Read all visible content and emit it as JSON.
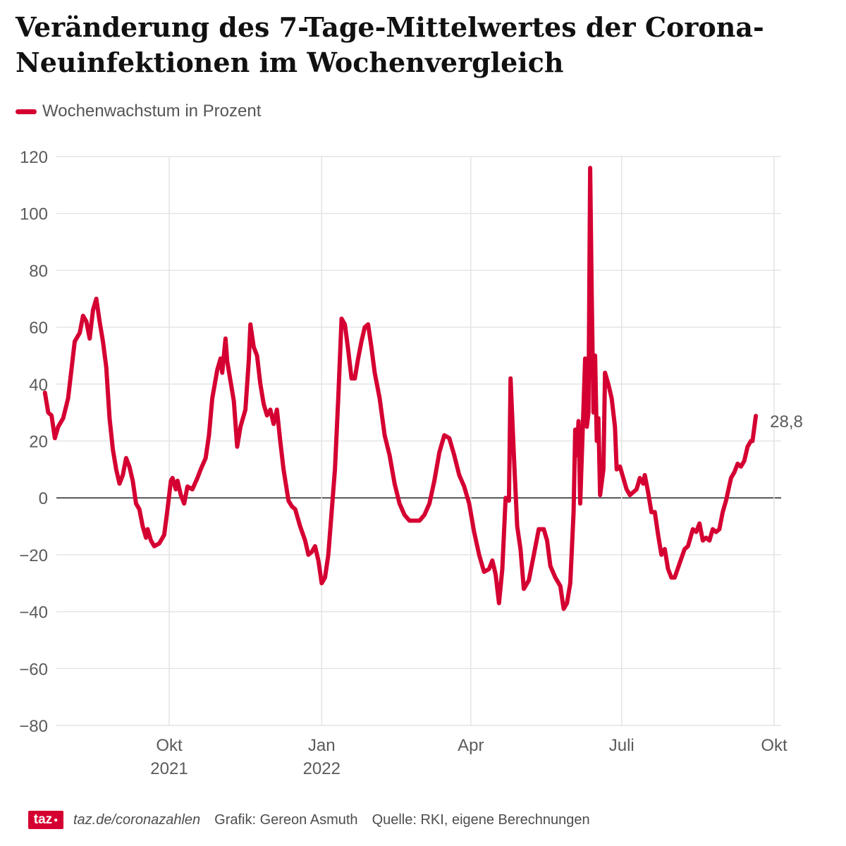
{
  "header": {
    "title": "Veränderung des 7-Tage-Mittelwertes der Corona-Neuinfektionen im Wochenvergleich"
  },
  "legend": {
    "label": "Wochenwachstum in Prozent",
    "color": "#d50032"
  },
  "footer": {
    "logo_text": "taz",
    "link": "taz.de/coronazahlen",
    "credit": "Grafik: Gereon Asmuth",
    "source": "Quelle: RKI, eigene Berechnungen"
  },
  "chart_data": {
    "type": "line",
    "title": "Veränderung des 7-Tage-Mittelwertes der Corona-Neuinfektionen im Wochenvergleich",
    "xlabel": "",
    "ylabel": "",
    "ylim": [
      -80,
      120
    ],
    "yticks": [
      120,
      100,
      80,
      60,
      40,
      20,
      0,
      -20,
      -40,
      -60,
      -80
    ],
    "ytick_labels": [
      "120",
      "100",
      "80",
      "60",
      "40",
      "20",
      "0",
      "−20",
      "−40",
      "−60",
      "−80"
    ],
    "xlim": [
      "2021-07-15",
      "2022-10-01"
    ],
    "xticks": [
      {
        "date": "2021-10-01",
        "label": "Okt",
        "sublabel": "2021"
      },
      {
        "date": "2022-01-01",
        "label": "Jan",
        "sublabel": "2022"
      },
      {
        "date": "2022-04-01",
        "label": "Apr",
        "sublabel": ""
      },
      {
        "date": "2022-07-01",
        "label": "Juli",
        "sublabel": ""
      },
      {
        "date": "2022-10-01",
        "label": "Okt",
        "sublabel": ""
      }
    ],
    "grid": true,
    "legend_position": "top-left",
    "end_label": "28,8",
    "series": [
      {
        "name": "Wochenwachstum in Prozent",
        "color": "#d50032",
        "points": [
          [
            "2021-07-18",
            37
          ],
          [
            "2021-07-20",
            30
          ],
          [
            "2021-07-22",
            29
          ],
          [
            "2021-07-24",
            21
          ],
          [
            "2021-07-26",
            25
          ],
          [
            "2021-07-29",
            28
          ],
          [
            "2021-08-01",
            35
          ],
          [
            "2021-08-03",
            45
          ],
          [
            "2021-08-05",
            55
          ],
          [
            "2021-08-08",
            58
          ],
          [
            "2021-08-10",
            64
          ],
          [
            "2021-08-12",
            62
          ],
          [
            "2021-08-14",
            56
          ],
          [
            "2021-08-16",
            66
          ],
          [
            "2021-08-18",
            70
          ],
          [
            "2021-08-20",
            62
          ],
          [
            "2021-08-22",
            55
          ],
          [
            "2021-08-24",
            46
          ],
          [
            "2021-08-26",
            28
          ],
          [
            "2021-08-28",
            17
          ],
          [
            "2021-08-30",
            10
          ],
          [
            "2021-09-01",
            5
          ],
          [
            "2021-09-03",
            8
          ],
          [
            "2021-09-05",
            14
          ],
          [
            "2021-09-07",
            11
          ],
          [
            "2021-09-09",
            6
          ],
          [
            "2021-09-11",
            -2
          ],
          [
            "2021-09-13",
            -4
          ],
          [
            "2021-09-15",
            -10
          ],
          [
            "2021-09-17",
            -14
          ],
          [
            "2021-09-18",
            -11
          ],
          [
            "2021-09-20",
            -15
          ],
          [
            "2021-09-22",
            -17
          ],
          [
            "2021-09-25",
            -16
          ],
          [
            "2021-09-28",
            -13
          ],
          [
            "2021-09-30",
            -4
          ],
          [
            "2021-10-02",
            6
          ],
          [
            "2021-10-03",
            7
          ],
          [
            "2021-10-05",
            3
          ],
          [
            "2021-10-06",
            6
          ],
          [
            "2021-10-08",
            1
          ],
          [
            "2021-10-10",
            -2
          ],
          [
            "2021-10-12",
            4
          ],
          [
            "2021-10-15",
            3
          ],
          [
            "2021-10-18",
            7
          ],
          [
            "2021-10-20",
            10
          ],
          [
            "2021-10-23",
            14
          ],
          [
            "2021-10-25",
            22
          ],
          [
            "2021-10-27",
            35
          ],
          [
            "2021-10-30",
            45
          ],
          [
            "2021-11-01",
            49
          ],
          [
            "2021-11-02",
            44
          ],
          [
            "2021-11-04",
            56
          ],
          [
            "2021-11-05",
            48
          ],
          [
            "2021-11-07",
            41
          ],
          [
            "2021-11-09",
            34
          ],
          [
            "2021-11-11",
            18
          ],
          [
            "2021-11-13",
            25
          ],
          [
            "2021-11-16",
            31
          ],
          [
            "2021-11-18",
            48
          ],
          [
            "2021-11-19",
            61
          ],
          [
            "2021-11-21",
            53
          ],
          [
            "2021-11-23",
            50
          ],
          [
            "2021-11-25",
            40
          ],
          [
            "2021-11-27",
            33
          ],
          [
            "2021-11-29",
            29
          ],
          [
            "2021-12-01",
            31
          ],
          [
            "2021-12-03",
            26
          ],
          [
            "2021-12-05",
            31
          ],
          [
            "2021-12-07",
            20
          ],
          [
            "2021-12-09",
            10
          ],
          [
            "2021-12-12",
            -1
          ],
          [
            "2021-12-14",
            -3
          ],
          [
            "2021-12-16",
            -4
          ],
          [
            "2021-12-19",
            -10
          ],
          [
            "2021-12-22",
            -15
          ],
          [
            "2021-12-24",
            -20
          ],
          [
            "2021-12-26",
            -19
          ],
          [
            "2021-12-28",
            -17
          ],
          [
            "2021-12-30",
            -22
          ],
          [
            "2022-01-01",
            -30
          ],
          [
            "2022-01-03",
            -28
          ],
          [
            "2022-01-05",
            -20
          ],
          [
            "2022-01-07",
            -5
          ],
          [
            "2022-01-09",
            10
          ],
          [
            "2022-01-11",
            35
          ],
          [
            "2022-01-13",
            63
          ],
          [
            "2022-01-15",
            61
          ],
          [
            "2022-01-17",
            52
          ],
          [
            "2022-01-19",
            42
          ],
          [
            "2022-01-21",
            42
          ],
          [
            "2022-01-23",
            49
          ],
          [
            "2022-01-25",
            55
          ],
          [
            "2022-01-27",
            60
          ],
          [
            "2022-01-29",
            61
          ],
          [
            "2022-01-31",
            53
          ],
          [
            "2022-02-02",
            44
          ],
          [
            "2022-02-05",
            35
          ],
          [
            "2022-02-08",
            22
          ],
          [
            "2022-02-11",
            15
          ],
          [
            "2022-02-14",
            5
          ],
          [
            "2022-02-17",
            -2
          ],
          [
            "2022-02-20",
            -6
          ],
          [
            "2022-02-23",
            -8
          ],
          [
            "2022-02-26",
            -8
          ],
          [
            "2022-03-01",
            -8
          ],
          [
            "2022-03-04",
            -6
          ],
          [
            "2022-03-07",
            -2
          ],
          [
            "2022-03-10",
            6
          ],
          [
            "2022-03-13",
            16
          ],
          [
            "2022-03-16",
            22
          ],
          [
            "2022-03-19",
            21
          ],
          [
            "2022-03-22",
            15
          ],
          [
            "2022-03-25",
            8
          ],
          [
            "2022-03-28",
            4
          ],
          [
            "2022-03-31",
            -2
          ],
          [
            "2022-04-03",
            -12
          ],
          [
            "2022-04-06",
            -20
          ],
          [
            "2022-04-09",
            -26
          ],
          [
            "2022-04-12",
            -25
          ],
          [
            "2022-04-14",
            -22
          ],
          [
            "2022-04-16",
            -27
          ],
          [
            "2022-04-18",
            -37
          ],
          [
            "2022-04-20",
            -25
          ],
          [
            "2022-04-22",
            0
          ],
          [
            "2022-04-24",
            -1
          ],
          [
            "2022-04-25",
            42
          ],
          [
            "2022-04-27",
            15
          ],
          [
            "2022-04-29",
            -10
          ],
          [
            "2022-05-01",
            -18
          ],
          [
            "2022-05-03",
            -32
          ],
          [
            "2022-05-06",
            -29
          ],
          [
            "2022-05-09",
            -20
          ],
          [
            "2022-05-12",
            -11
          ],
          [
            "2022-05-15",
            -11
          ],
          [
            "2022-05-17",
            -15
          ],
          [
            "2022-05-19",
            -24
          ],
          [
            "2022-05-22",
            -28
          ],
          [
            "2022-05-25",
            -31
          ],
          [
            "2022-05-27",
            -39
          ],
          [
            "2022-05-29",
            -37
          ],
          [
            "2022-05-31",
            -30
          ],
          [
            "2022-06-02",
            -5
          ],
          [
            "2022-06-03",
            24
          ],
          [
            "2022-06-04",
            15
          ],
          [
            "2022-06-05",
            27
          ],
          [
            "2022-06-06",
            -2
          ],
          [
            "2022-06-07",
            15
          ],
          [
            "2022-06-09",
            49
          ],
          [
            "2022-06-10",
            25
          ],
          [
            "2022-06-11",
            30
          ],
          [
            "2022-06-12",
            116
          ],
          [
            "2022-06-13",
            70
          ],
          [
            "2022-06-14",
            30
          ],
          [
            "2022-06-15",
            50
          ],
          [
            "2022-06-16",
            20
          ],
          [
            "2022-06-17",
            28
          ],
          [
            "2022-06-18",
            1
          ],
          [
            "2022-06-20",
            10
          ],
          [
            "2022-06-21",
            44
          ],
          [
            "2022-06-23",
            40
          ],
          [
            "2022-06-25",
            35
          ],
          [
            "2022-06-27",
            25
          ],
          [
            "2022-06-28",
            10
          ],
          [
            "2022-06-30",
            11
          ],
          [
            "2022-07-02",
            7
          ],
          [
            "2022-07-04",
            3
          ],
          [
            "2022-07-06",
            1
          ],
          [
            "2022-07-08",
            2
          ],
          [
            "2022-07-10",
            3
          ],
          [
            "2022-07-12",
            7
          ],
          [
            "2022-07-14",
            5
          ],
          [
            "2022-07-15",
            8
          ],
          [
            "2022-07-17",
            2
          ],
          [
            "2022-07-19",
            -5
          ],
          [
            "2022-07-21",
            -5
          ],
          [
            "2022-07-23",
            -13
          ],
          [
            "2022-07-25",
            -20
          ],
          [
            "2022-07-27",
            -18
          ],
          [
            "2022-07-29",
            -25
          ],
          [
            "2022-07-31",
            -28
          ],
          [
            "2022-08-02",
            -28
          ],
          [
            "2022-08-05",
            -23
          ],
          [
            "2022-08-08",
            -18
          ],
          [
            "2022-08-10",
            -17
          ],
          [
            "2022-08-13",
            -11
          ],
          [
            "2022-08-15",
            -12
          ],
          [
            "2022-08-17",
            -9
          ],
          [
            "2022-08-19",
            -15
          ],
          [
            "2022-08-21",
            -14
          ],
          [
            "2022-08-23",
            -15
          ],
          [
            "2022-08-25",
            -11
          ],
          [
            "2022-08-27",
            -12
          ],
          [
            "2022-08-29",
            -11
          ],
          [
            "2022-08-31",
            -5
          ],
          [
            "2022-09-02",
            -1
          ],
          [
            "2022-09-05",
            7
          ],
          [
            "2022-09-07",
            9
          ],
          [
            "2022-09-09",
            12
          ],
          [
            "2022-09-11",
            11
          ],
          [
            "2022-09-13",
            13
          ],
          [
            "2022-09-15",
            18
          ],
          [
            "2022-09-17",
            20
          ],
          [
            "2022-09-18",
            20
          ],
          [
            "2022-09-20",
            28.8
          ]
        ]
      }
    ]
  }
}
